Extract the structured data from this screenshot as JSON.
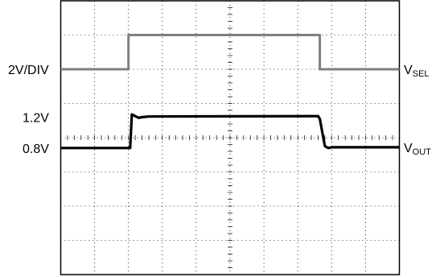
{
  "chart_data": {
    "type": "line",
    "title": "",
    "xlabel": "",
    "ylabel": "",
    "grid": true,
    "divisions": {
      "x": 10,
      "y": 8
    },
    "xlim": [
      0,
      10
    ],
    "ylim": [
      0,
      8
    ],
    "scale_label": "2V/DIV",
    "level_labels": [
      {
        "text": "1.2V",
        "y": 4.6
      },
      {
        "text": "0.8V",
        "y": 3.7
      }
    ],
    "series": [
      {
        "name_main": "V",
        "name_sub": "SEL",
        "color": "#808080",
        "x": [
          0,
          2.0,
          2.0,
          7.65,
          7.65,
          10
        ],
        "y": [
          6.0,
          6.0,
          7.0,
          7.0,
          6.0,
          6.0
        ]
      },
      {
        "name_main": "V",
        "name_sub": "OUT",
        "color": "#000000",
        "x": [
          0,
          2.05,
          2.1,
          2.2,
          2.3,
          2.4,
          2.6,
          7.6,
          7.65,
          7.8,
          7.9,
          8.0,
          10
        ],
        "y": [
          3.7,
          3.7,
          4.68,
          4.63,
          4.58,
          4.6,
          4.62,
          4.63,
          4.55,
          3.75,
          3.7,
          3.72,
          3.72
        ]
      }
    ]
  }
}
